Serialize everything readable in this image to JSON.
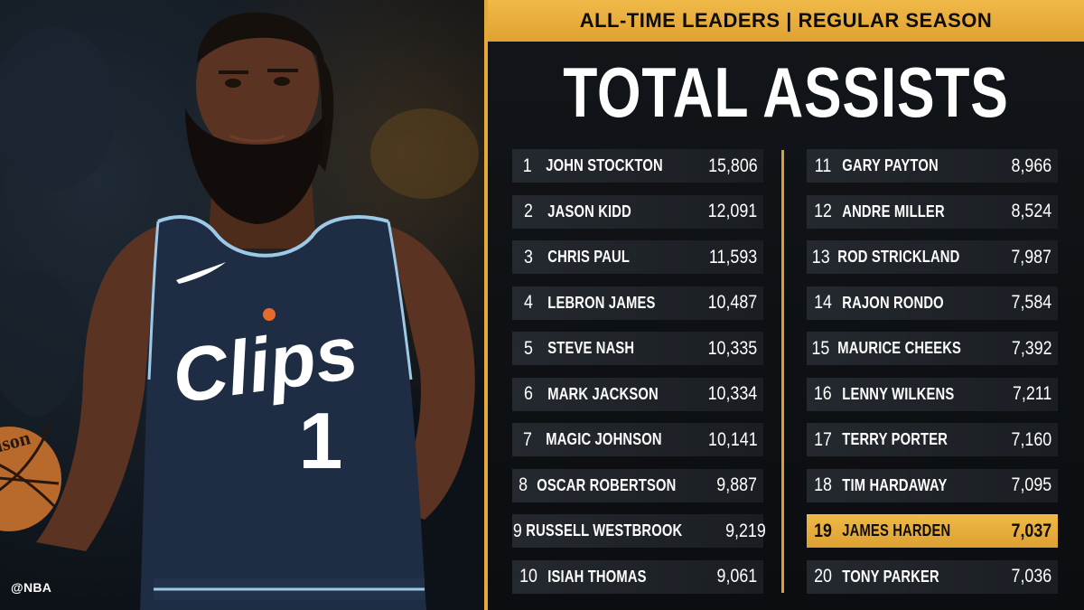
{
  "credit": "@NBA",
  "banner": "ALL-TIME LEADERS | REGULAR SEASON",
  "title": "TOTAL ASSISTS",
  "jersey": {
    "wordmark": "Clips",
    "number": "1"
  },
  "highlight_color": "#e3a93b",
  "leaders_left": [
    {
      "rank": "1",
      "name": "JOHN STOCKTON",
      "value": "15,806"
    },
    {
      "rank": "2",
      "name": "JASON KIDD",
      "value": "12,091"
    },
    {
      "rank": "3",
      "name": "CHRIS PAUL",
      "value": "11,593"
    },
    {
      "rank": "4",
      "name": "LEBRON JAMES",
      "value": "10,487"
    },
    {
      "rank": "5",
      "name": "STEVE NASH",
      "value": "10,335"
    },
    {
      "rank": "6",
      "name": "MARK JACKSON",
      "value": "10,334"
    },
    {
      "rank": "7",
      "name": "MAGIC JOHNSON",
      "value": "10,141"
    },
    {
      "rank": "8",
      "name": "OSCAR ROBERTSON",
      "value": "9,887"
    },
    {
      "rank": "9",
      "name": "RUSSELL WESTBROOK",
      "value": "9,219"
    },
    {
      "rank": "10",
      "name": "ISIAH THOMAS",
      "value": "9,061"
    }
  ],
  "leaders_right": [
    {
      "rank": "11",
      "name": "GARY PAYTON",
      "value": "8,966"
    },
    {
      "rank": "12",
      "name": "ANDRE MILLER",
      "value": "8,524"
    },
    {
      "rank": "13",
      "name": "ROD STRICKLAND",
      "value": "7,987"
    },
    {
      "rank": "14",
      "name": "RAJON RONDO",
      "value": "7,584"
    },
    {
      "rank": "15",
      "name": "MAURICE CHEEKS",
      "value": "7,392"
    },
    {
      "rank": "16",
      "name": "LENNY WILKENS",
      "value": "7,211"
    },
    {
      "rank": "17",
      "name": "TERRY PORTER",
      "value": "7,160"
    },
    {
      "rank": "18",
      "name": "TIM HARDAWAY",
      "value": "7,095"
    },
    {
      "rank": "19",
      "name": "JAMES HARDEN",
      "value": "7,037",
      "highlighted": true
    },
    {
      "rank": "20",
      "name": "TONY PARKER",
      "value": "7,036"
    }
  ]
}
